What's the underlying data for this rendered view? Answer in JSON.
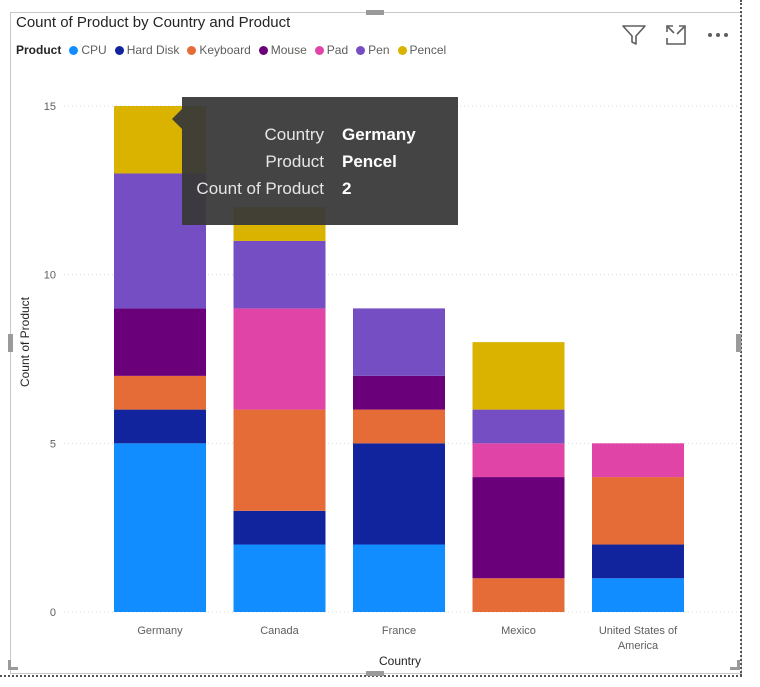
{
  "visual": {
    "title": "Count of Product by Country and Product",
    "icons": [
      "filter-icon",
      "focus-mode-icon",
      "more-options-icon"
    ]
  },
  "legend": {
    "title": "Product",
    "items": [
      {
        "label": "CPU",
        "color": "#118DFF"
      },
      {
        "label": "Hard Disk",
        "color": "#12239E"
      },
      {
        "label": "Keyboard",
        "color": "#E66C37"
      },
      {
        "label": "Mouse",
        "color": "#6B007B"
      },
      {
        "label": "Pad",
        "color": "#E044A7"
      },
      {
        "label": "Pen",
        "color": "#744EC2"
      },
      {
        "label": "Pencel",
        "color": "#D9B300"
      }
    ]
  },
  "tooltip": {
    "rows": [
      {
        "key": "Country",
        "value": "Germany"
      },
      {
        "key": "Product",
        "value": "Pencel"
      },
      {
        "key": "Count of Product",
        "value": "2"
      }
    ]
  },
  "chart_data": {
    "type": "bar",
    "stacked": true,
    "title": "Count of Product by Country and Product",
    "xlabel": "Country",
    "ylabel": "Count of Product",
    "ylim": [
      0,
      15
    ],
    "yticks": [
      0,
      5,
      10,
      15
    ],
    "categories": [
      "Germany",
      "Canada",
      "France",
      "Mexico",
      "United States of America"
    ],
    "series": [
      {
        "name": "CPU",
        "color": "#118DFF",
        "values": [
          5,
          2,
          2,
          0,
          1
        ]
      },
      {
        "name": "Hard Disk",
        "color": "#12239E",
        "values": [
          1,
          1,
          3,
          0,
          1
        ]
      },
      {
        "name": "Keyboard",
        "color": "#E66C37",
        "values": [
          1,
          3,
          1,
          1,
          2
        ]
      },
      {
        "name": "Mouse",
        "color": "#6B007B",
        "values": [
          2,
          0,
          1,
          3,
          0
        ]
      },
      {
        "name": "Pad",
        "color": "#E044A7",
        "values": [
          0,
          3,
          0,
          1,
          1
        ]
      },
      {
        "name": "Pen",
        "color": "#744EC2",
        "values": [
          4,
          2,
          2,
          1,
          0
        ]
      },
      {
        "name": "Pencel",
        "color": "#D9B300",
        "values": [
          2,
          1,
          0,
          2,
          0
        ]
      }
    ]
  }
}
